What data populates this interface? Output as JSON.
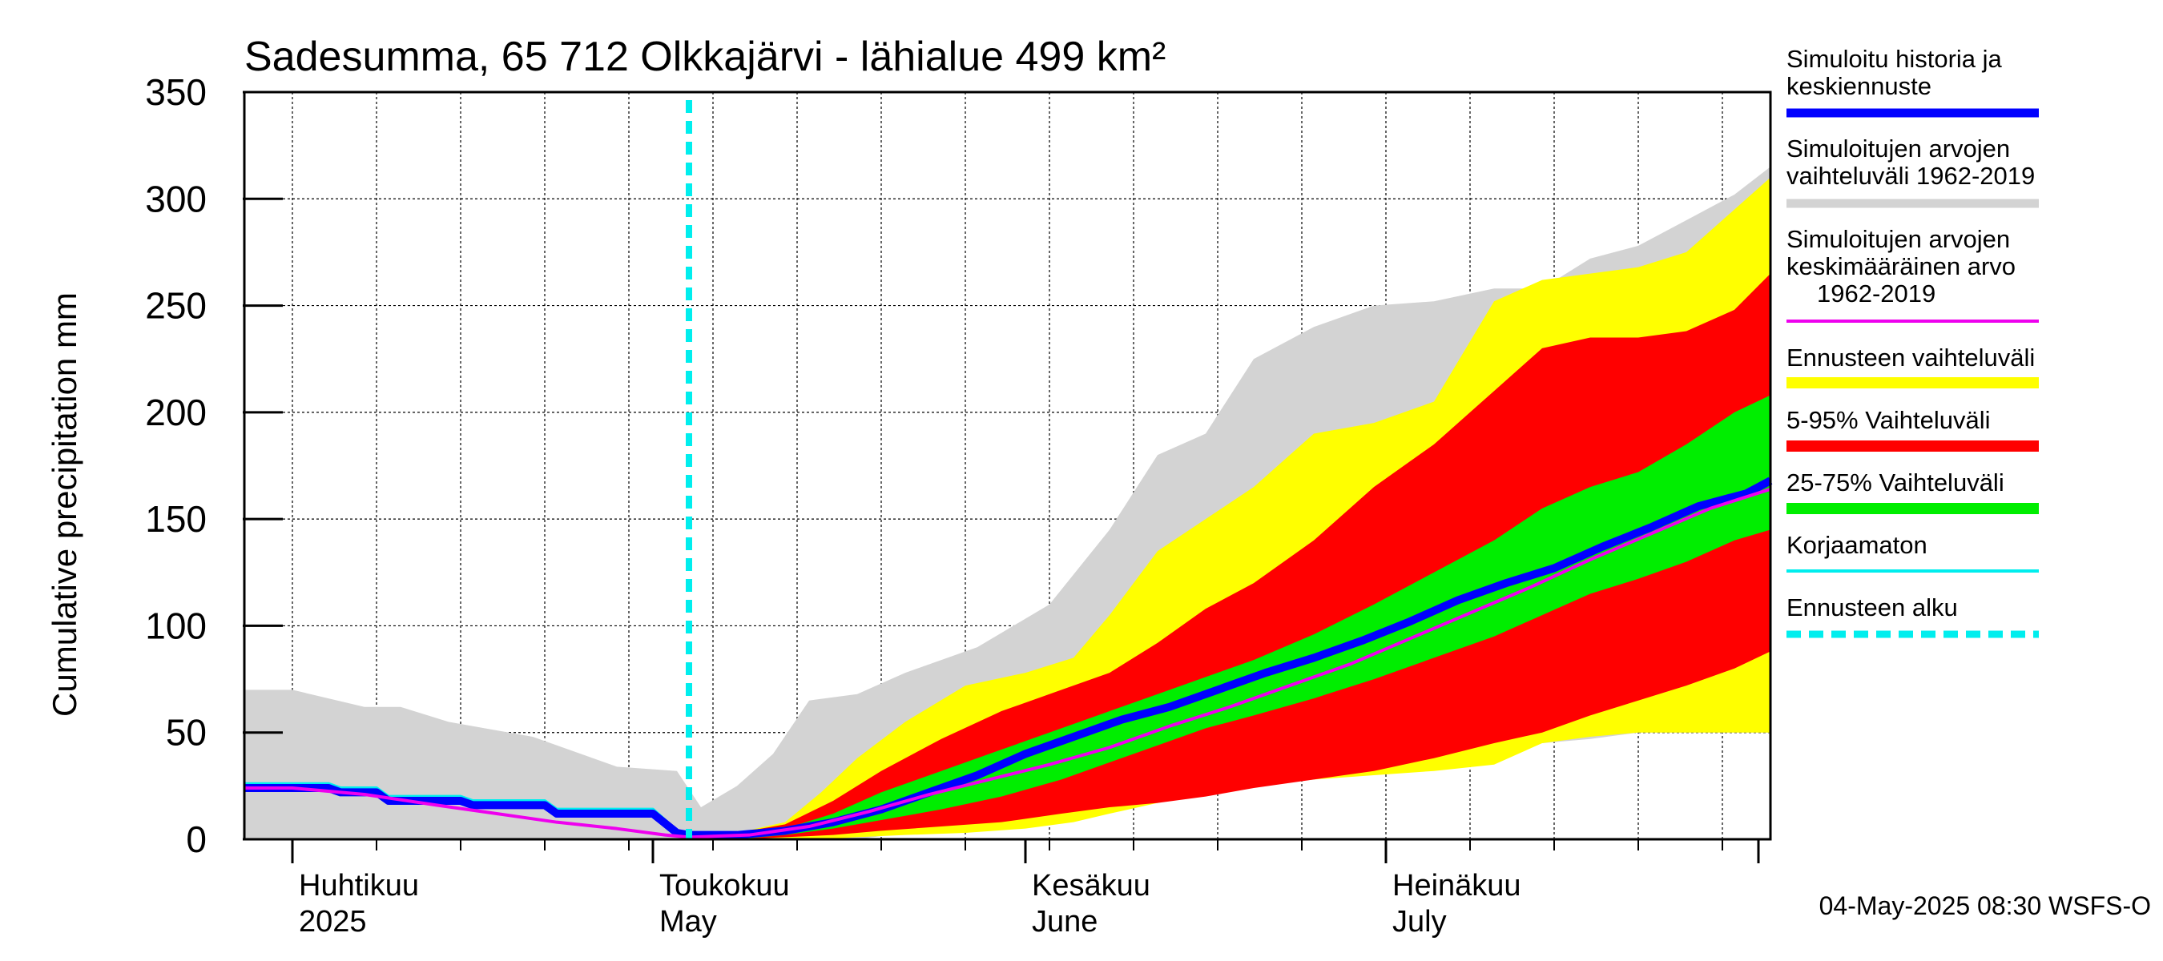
{
  "chart_data": {
    "type": "area",
    "title": "Sadesumma, 65 712 Olkkajärvi - lähialue 499 km²",
    "ylabel": "Cumulative precipitation   mm",
    "xlabel": "",
    "ylim": [
      0,
      350
    ],
    "xlim": [
      "2025-03-28",
      "2025-08-02"
    ],
    "y_ticks": [
      0,
      50,
      100,
      150,
      200,
      250,
      300,
      350
    ],
    "grid": true,
    "legend_position": "right",
    "forecast_start": "2025-05-04",
    "month_labels": [
      {
        "date": "2025-04-01",
        "line1": "Huhtikuu",
        "line2": "2025"
      },
      {
        "date": "2025-05-01",
        "line1": "Toukokuu",
        "line2": "May"
      },
      {
        "date": "2025-06-01",
        "line1": "Kesäkuu",
        "line2": "June"
      },
      {
        "date": "2025-07-01",
        "line1": "Heinäkuu",
        "line2": "July"
      }
    ],
    "colors": {
      "history_range": "#d3d3d3",
      "forecast_range": "#ffff00",
      "p5_95": "#ff0000",
      "p25_75": "#00ee00",
      "simulated": "#0000ff",
      "mean": "#ee00ee",
      "uncorrected": "#00eeee",
      "forecast_start": "#00eeee"
    },
    "series": [
      {
        "name": "Simuloitujen arvojen vaihteluväli 1962-2019",
        "kind": "band",
        "x": [
          "2025-03-28",
          "2025-04-01",
          "2025-04-07",
          "2025-04-10",
          "2025-04-14",
          "2025-04-21",
          "2025-04-28",
          "2025-05-03",
          "2025-05-05",
          "2025-05-08",
          "2025-05-11",
          "2025-05-14",
          "2025-05-18",
          "2025-05-22",
          "2025-05-28",
          "2025-06-03",
          "2025-06-08",
          "2025-06-12",
          "2025-06-16",
          "2025-06-20",
          "2025-06-25",
          "2025-06-30",
          "2025-07-05",
          "2025-07-10",
          "2025-07-14",
          "2025-07-18",
          "2025-07-22",
          "2025-07-26",
          "2025-07-30",
          "2025-08-02"
        ],
        "upper": [
          70,
          70,
          62,
          62,
          55,
          48,
          34,
          32,
          15,
          25,
          40,
          65,
          68,
          78,
          90,
          110,
          145,
          180,
          190,
          225,
          240,
          250,
          252,
          258,
          258,
          272,
          278,
          290,
          302,
          315
        ],
        "lower": [
          0,
          0,
          0,
          0,
          0,
          0,
          0,
          0,
          0,
          0,
          0,
          0,
          0,
          3,
          6,
          10,
          14,
          17,
          22,
          25,
          30,
          33,
          36,
          40,
          45,
          47,
          50,
          50,
          50,
          50
        ]
      },
      {
        "name": "Ennusteen vaihteluväli",
        "kind": "band",
        "x": [
          "2025-05-04",
          "2025-05-08",
          "2025-05-12",
          "2025-05-15",
          "2025-05-18",
          "2025-05-22",
          "2025-05-27",
          "2025-06-01",
          "2025-06-05",
          "2025-06-08",
          "2025-06-12",
          "2025-06-16",
          "2025-06-20",
          "2025-06-25",
          "2025-06-30",
          "2025-07-05",
          "2025-07-10",
          "2025-07-14",
          "2025-07-18",
          "2025-07-22",
          "2025-07-26",
          "2025-07-30",
          "2025-08-02"
        ],
        "upper": [
          1,
          3,
          8,
          22,
          38,
          55,
          72,
          78,
          85,
          105,
          135,
          150,
          165,
          190,
          195,
          205,
          252,
          262,
          265,
          268,
          275,
          295,
          310
        ],
        "lower": [
          0,
          0,
          0,
          0,
          1,
          2,
          3,
          5,
          8,
          12,
          17,
          22,
          25,
          28,
          30,
          32,
          35,
          45,
          48,
          50,
          50,
          50,
          50
        ]
      },
      {
        "name": "5-95% Vaihteluväli",
        "kind": "band",
        "x": [
          "2025-05-04",
          "2025-05-08",
          "2025-05-12",
          "2025-05-16",
          "2025-05-20",
          "2025-05-25",
          "2025-05-30",
          "2025-06-04",
          "2025-06-08",
          "2025-06-12",
          "2025-06-16",
          "2025-06-20",
          "2025-06-25",
          "2025-06-30",
          "2025-07-05",
          "2025-07-10",
          "2025-07-14",
          "2025-07-18",
          "2025-07-22",
          "2025-07-26",
          "2025-07-30",
          "2025-08-02"
        ],
        "upper": [
          1,
          3,
          7,
          18,
          32,
          47,
          60,
          70,
          78,
          92,
          108,
          120,
          140,
          165,
          185,
          210,
          230,
          235,
          235,
          238,
          248,
          265
        ],
        "lower": [
          0,
          0,
          1,
          2,
          4,
          6,
          8,
          12,
          15,
          17,
          20,
          24,
          28,
          32,
          38,
          45,
          50,
          58,
          65,
          72,
          80,
          88
        ]
      },
      {
        "name": "25-75% Vaihteluväli",
        "kind": "band",
        "x": [
          "2025-05-04",
          "2025-05-08",
          "2025-05-12",
          "2025-05-16",
          "2025-05-20",
          "2025-05-25",
          "2025-05-30",
          "2025-06-04",
          "2025-06-08",
          "2025-06-12",
          "2025-06-16",
          "2025-06-20",
          "2025-06-25",
          "2025-06-30",
          "2025-07-05",
          "2025-07-10",
          "2025-07-14",
          "2025-07-18",
          "2025-07-22",
          "2025-07-26",
          "2025-07-30",
          "2025-08-02"
        ],
        "upper": [
          1,
          2,
          5,
          12,
          22,
          32,
          42,
          52,
          60,
          68,
          76,
          84,
          96,
          110,
          125,
          140,
          155,
          165,
          172,
          185,
          200,
          208
        ],
        "lower": [
          0,
          0,
          2,
          5,
          9,
          14,
          20,
          28,
          36,
          44,
          52,
          58,
          66,
          75,
          85,
          95,
          105,
          115,
          122,
          130,
          140,
          145
        ]
      },
      {
        "name": "Simuloitujen arvojen keskimääräinen arvo 1962-2019",
        "kind": "line",
        "x": [
          "2025-03-28",
          "2025-04-01",
          "2025-04-07",
          "2025-04-13",
          "2025-04-18",
          "2025-04-23",
          "2025-04-28",
          "2025-05-02",
          "2025-05-04",
          "2025-05-09",
          "2025-05-14",
          "2025-05-19",
          "2025-05-24",
          "2025-05-29",
          "2025-06-03",
          "2025-06-08",
          "2025-06-13",
          "2025-06-18",
          "2025-06-23",
          "2025-06-28",
          "2025-07-03",
          "2025-07-08",
          "2025-07-13",
          "2025-07-18",
          "2025-07-23",
          "2025-07-28",
          "2025-08-02"
        ],
        "values": [
          24,
          24,
          21,
          16,
          12,
          8,
          5,
          2,
          1,
          2,
          6,
          13,
          21,
          28,
          35,
          43,
          53,
          62,
          72,
          82,
          94,
          106,
          118,
          131,
          143,
          155,
          164
        ]
      },
      {
        "name": "Korjaamaton",
        "kind": "line",
        "x": [
          "2025-03-28",
          "2025-04-04",
          "2025-04-05",
          "2025-04-08",
          "2025-04-09",
          "2025-04-15",
          "2025-04-16",
          "2025-04-22",
          "2025-04-23",
          "2025-05-01",
          "2025-05-03",
          "2025-05-04"
        ],
        "values": [
          26,
          26,
          24,
          24,
          20,
          20,
          18,
          18,
          14,
          14,
          4,
          2
        ]
      },
      {
        "name": "Simuloitu historia ja keskiennuste",
        "kind": "line",
        "x": [
          "2025-03-28",
          "2025-04-04",
          "2025-04-05",
          "2025-04-08",
          "2025-04-09",
          "2025-04-15",
          "2025-04-16",
          "2025-04-22",
          "2025-04-23",
          "2025-05-01",
          "2025-05-03",
          "2025-05-04",
          "2025-05-08",
          "2025-05-12",
          "2025-05-16",
          "2025-05-20",
          "2025-05-24",
          "2025-05-28",
          "2025-06-01",
          "2025-06-05",
          "2025-06-09",
          "2025-06-13",
          "2025-06-17",
          "2025-06-21",
          "2025-06-25",
          "2025-06-29",
          "2025-07-03",
          "2025-07-07",
          "2025-07-11",
          "2025-07-15",
          "2025-07-19",
          "2025-07-23",
          "2025-07-27",
          "2025-07-31",
          "2025-08-02"
        ],
        "values": [
          24,
          24,
          22,
          22,
          18,
          18,
          16,
          16,
          12,
          12,
          3,
          2,
          2,
          4,
          8,
          14,
          22,
          30,
          40,
          48,
          56,
          62,
          70,
          78,
          85,
          93,
          102,
          112,
          120,
          127,
          137,
          146,
          156,
          162,
          168
        ]
      }
    ],
    "legend": [
      {
        "label": "Simuloitu historia ja keskiennuste",
        "color": "#0000ff",
        "style": "thick"
      },
      {
        "label": "Simuloitujen arvojen vaihteluväli 1962-2019",
        "color": "#d3d3d3",
        "style": "thick"
      },
      {
        "label": "Simuloitujen arvojen keskimääräinen arvo 1962-2019",
        "color": "#ee00ee",
        "style": "thin"
      },
      {
        "label": "Ennusteen vaihteluväli",
        "color": "#ffff00",
        "style": "band"
      },
      {
        "label": "5-95% Vaihteluväli",
        "color": "#ff0000",
        "style": "band"
      },
      {
        "label": "25-75% Vaihteluväli",
        "color": "#00ee00",
        "style": "band"
      },
      {
        "label": "Korjaamaton",
        "color": "#00eeee",
        "style": "thin"
      },
      {
        "label": "Ennusteen alku",
        "color": "#00eeee",
        "style": "dashed"
      }
    ],
    "legend_text": {
      "l1a": "Simuloitu historia ja",
      "l1b": "keskiennuste",
      "l2a": "Simuloitujen arvojen",
      "l2b": "vaihteluväli 1962-2019",
      "l3a": "Simuloitujen arvojen",
      "l3b": "keskimääräinen arvo",
      "l3c": "1962-2019",
      "l4": "Ennusteen vaihteluväli",
      "l5": "5-95% Vaihteluväli",
      "l6": "25-75% Vaihteluväli",
      "l7": "Korjaamaton",
      "l8": "Ennusteen alku"
    },
    "footer": "04-May-2025 08:30 WSFS-O"
  }
}
